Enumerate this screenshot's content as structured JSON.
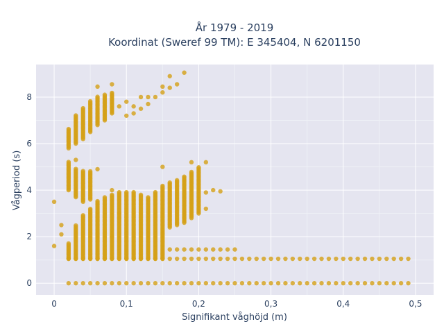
{
  "chart_data": {
    "type": "scatter",
    "title": "År 1979 - 2019",
    "subtitle": "Koordinat (Sweref 99 TM): E 345404, N 6201150",
    "xlabel": "Signifikant våghöjd (m)",
    "ylabel": "Vågperiod (s)",
    "xlim": [
      -0.025,
      0.525
    ],
    "ylim": [
      -0.5,
      9.4
    ],
    "x_ticks": [
      0,
      0.1,
      0.2,
      0.3,
      0.4,
      0.5
    ],
    "x_tick_labels": [
      "0",
      "0,1",
      "0,2",
      "0,3",
      "0,4",
      "0,5"
    ],
    "y_ticks": [
      0,
      2,
      4,
      6,
      8
    ],
    "y_tick_labels": [
      "0",
      "2",
      "4",
      "6",
      "8"
    ],
    "grid": true,
    "marker_color": "#d4a017",
    "plot_background": "#e5e5f0",
    "x_step": 0.01,
    "series": [
      {
        "clusters": [
          {
            "x": [
              0.02,
              0.49
            ],
            "y": [
              0,
              0
            ]
          },
          {
            "x": [
              0.02,
              0.49
            ],
            "y": [
              1.05,
              1.05
            ]
          },
          {
            "x": [
              0.16,
              0.25
            ],
            "y": [
              1.45,
              1.45
            ]
          },
          {
            "x": [
              0.02,
              0.02
            ],
            "y": [
              1.05,
              1.7
            ]
          },
          {
            "x": [
              0.03,
              0.03
            ],
            "y": [
              1.05,
              2.5
            ]
          },
          {
            "x": [
              0.04,
              0.04
            ],
            "y": [
              1.05,
              2.9
            ]
          },
          {
            "x": [
              0.05,
              0.05
            ],
            "y": [
              1.05,
              3.2
            ]
          },
          {
            "x": [
              0.06,
              0.06
            ],
            "y": [
              1.05,
              3.5
            ]
          },
          {
            "x": [
              0.07,
              0.07
            ],
            "y": [
              1.05,
              3.7
            ]
          },
          {
            "x": [
              0.08,
              0.08
            ],
            "y": [
              1.05,
              3.8
            ]
          },
          {
            "x": [
              0.09,
              0.09
            ],
            "y": [
              1.05,
              3.9
            ]
          },
          {
            "x": [
              0.1,
              0.1
            ],
            "y": [
              1.05,
              3.9
            ]
          },
          {
            "x": [
              0.11,
              0.11
            ],
            "y": [
              1.05,
              3.9
            ]
          },
          {
            "x": [
              0.12,
              0.12
            ],
            "y": [
              1.05,
              3.8
            ]
          },
          {
            "x": [
              0.13,
              0.13
            ],
            "y": [
              1.05,
              3.7
            ]
          },
          {
            "x": [
              0.14,
              0.14
            ],
            "y": [
              1.05,
              3.9
            ]
          },
          {
            "x": [
              0.15,
              0.15
            ],
            "y": [
              1.05,
              4.2
            ]
          },
          {
            "x": [
              0.16,
              0.16
            ],
            "y": [
              2.4,
              4.3
            ]
          },
          {
            "x": [
              0.17,
              0.17
            ],
            "y": [
              2.5,
              4.4
            ]
          },
          {
            "x": [
              0.18,
              0.18
            ],
            "y": [
              2.6,
              4.6
            ]
          },
          {
            "x": [
              0.19,
              0.19
            ],
            "y": [
              2.8,
              4.8
            ]
          },
          {
            "x": [
              0.2,
              0.2
            ],
            "y": [
              3.0,
              5.0
            ]
          },
          {
            "x": [
              0.02,
              0.02
            ],
            "y": [
              4.0,
              5.2
            ]
          },
          {
            "x": [
              0.03,
              0.03
            ],
            "y": [
              3.7,
              4.9
            ]
          },
          {
            "x": [
              0.04,
              0.04
            ],
            "y": [
              3.5,
              4.8
            ]
          },
          {
            "x": [
              0.05,
              0.05
            ],
            "y": [
              3.6,
              4.8
            ]
          },
          {
            "x": [
              0.02,
              0.02
            ],
            "y": [
              5.8,
              6.6
            ]
          },
          {
            "x": [
              0.03,
              0.03
            ],
            "y": [
              6.0,
              7.2
            ]
          },
          {
            "x": [
              0.04,
              0.04
            ],
            "y": [
              6.2,
              7.5
            ]
          },
          {
            "x": [
              0.05,
              0.05
            ],
            "y": [
              6.5,
              7.8
            ]
          },
          {
            "x": [
              0.06,
              0.06
            ],
            "y": [
              6.8,
              8.0
            ]
          },
          {
            "x": [
              0.07,
              0.07
            ],
            "y": [
              7.0,
              8.1
            ]
          },
          {
            "x": [
              0.08,
              0.08
            ],
            "y": [
              7.3,
              8.2
            ]
          }
        ],
        "points": [
          {
            "x": 0.0,
            "y": 1.6
          },
          {
            "x": 0.0,
            "y": 3.5
          },
          {
            "x": 0.01,
            "y": 2.5
          },
          {
            "x": 0.01,
            "y": 2.1
          },
          {
            "x": 0.08,
            "y": 4.0
          },
          {
            "x": 0.09,
            "y": 3.0
          },
          {
            "x": 0.09,
            "y": 2.8
          },
          {
            "x": 0.08,
            "y": 2.0
          },
          {
            "x": 0.19,
            "y": 5.2
          },
          {
            "x": 0.21,
            "y": 3.9
          },
          {
            "x": 0.21,
            "y": 3.2
          },
          {
            "x": 0.22,
            "y": 4.0
          },
          {
            "x": 0.21,
            "y": 5.2
          },
          {
            "x": 0.1,
            "y": 7.8
          },
          {
            "x": 0.11,
            "y": 7.6
          },
          {
            "x": 0.12,
            "y": 8.0
          },
          {
            "x": 0.13,
            "y": 8.0
          },
          {
            "x": 0.14,
            "y": 8.0
          },
          {
            "x": 0.12,
            "y": 7.5
          },
          {
            "x": 0.13,
            "y": 7.7
          },
          {
            "x": 0.15,
            "y": 8.2
          },
          {
            "x": 0.16,
            "y": 8.4
          },
          {
            "x": 0.15,
            "y": 8.45
          },
          {
            "x": 0.17,
            "y": 8.55
          },
          {
            "x": 0.16,
            "y": 8.9
          },
          {
            "x": 0.18,
            "y": 9.05
          },
          {
            "x": 0.06,
            "y": 8.45
          },
          {
            "x": 0.08,
            "y": 8.55
          },
          {
            "x": 0.09,
            "y": 7.6
          },
          {
            "x": 0.1,
            "y": 7.2
          },
          {
            "x": 0.11,
            "y": 7.3
          },
          {
            "x": 0.03,
            "y": 5.3
          },
          {
            "x": 0.06,
            "y": 4.9
          },
          {
            "x": 0.15,
            "y": 5.0
          },
          {
            "x": 0.23,
            "y": 3.95
          }
        ]
      }
    ]
  }
}
